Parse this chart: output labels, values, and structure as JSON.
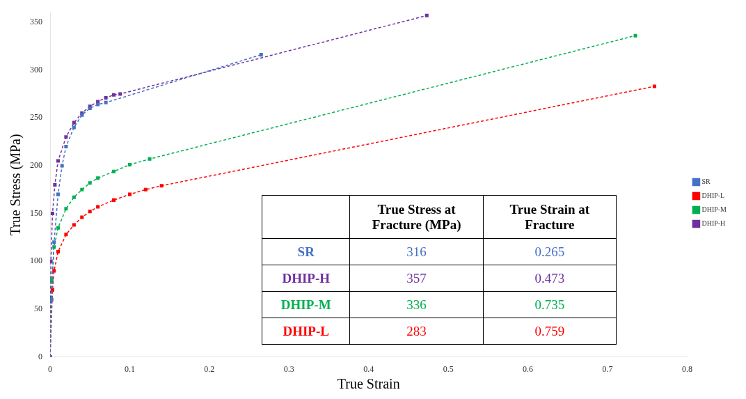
{
  "chart_data": {
    "type": "line",
    "xlabel": "True Strain",
    "ylabel": "True Stress (MPa)",
    "xlim": [
      0,
      0.8
    ],
    "xticks": [
      0,
      0.1,
      0.2,
      0.3,
      0.4,
      0.5,
      0.6,
      0.7,
      0.8
    ],
    "ylim": [
      0,
      360
    ],
    "yticks": [
      0,
      50,
      100,
      150,
      200,
      250,
      300,
      350
    ],
    "grid": false,
    "legend": "right",
    "marker": "square",
    "line_style": "dashed",
    "series": [
      {
        "name": "SR",
        "color": "#4472c4",
        "x": [
          0,
          0.002,
          0.005,
          0.01,
          0.015,
          0.02,
          0.03,
          0.04,
          0.05,
          0.06,
          0.07,
          0.265
        ],
        "values": [
          0,
          60,
          120,
          170,
          200,
          220,
          240,
          253,
          260,
          264,
          266,
          316
        ]
      },
      {
        "name": "DHIP-L",
        "color": "#ff0000",
        "x": [
          0,
          0.003,
          0.005,
          0.01,
          0.02,
          0.03,
          0.04,
          0.05,
          0.06,
          0.08,
          0.1,
          0.12,
          0.14,
          0.759
        ],
        "values": [
          0,
          70,
          90,
          110,
          128,
          138,
          146,
          152,
          157,
          164,
          170,
          175,
          179,
          283
        ]
      },
      {
        "name": "DHIP-M",
        "color": "#00b050",
        "x": [
          0,
          0.002,
          0.005,
          0.01,
          0.02,
          0.03,
          0.04,
          0.05,
          0.06,
          0.08,
          0.1,
          0.125,
          0.735
        ],
        "values": [
          0,
          80,
          115,
          135,
          155,
          167,
          175,
          182,
          187,
          194,
          201,
          207,
          336
        ]
      },
      {
        "name": "DHIP-H",
        "color": "#7030a0",
        "x": [
          0,
          0.001,
          0.003,
          0.006,
          0.01,
          0.02,
          0.03,
          0.04,
          0.05,
          0.06,
          0.07,
          0.08,
          0.088,
          0.473
        ],
        "values": [
          0,
          100,
          150,
          180,
          205,
          230,
          245,
          255,
          262,
          267,
          271,
          274,
          275,
          357
        ]
      }
    ],
    "annotations": [
      "True Stress at Fracture (MPa)",
      "True Strain at Fracture",
      "SR",
      "316",
      "0.265",
      "DHIP-H",
      "357",
      "0.473",
      "DHIP-M",
      "336",
      "0.735",
      "DHIP-L",
      "283",
      "0.759"
    ]
  }
}
